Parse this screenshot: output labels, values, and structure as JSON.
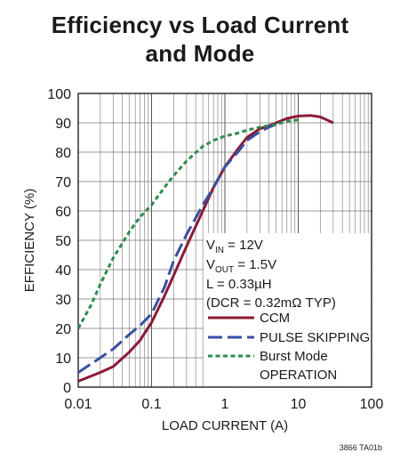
{
  "chart_data": {
    "type": "line",
    "title_line1": "Efficiency vs Load Current",
    "title_line2": "and Mode",
    "xlabel": "LOAD CURRENT (A)",
    "ylabel": "EFFICIENCY (%)",
    "x_scale": "log",
    "xlim": [
      0.01,
      100
    ],
    "ylim": [
      0,
      100
    ],
    "x_ticks": [
      0.01,
      0.1,
      1,
      10,
      100
    ],
    "x_tick_labels": [
      "0.01",
      "0.1",
      "1",
      "10",
      "100"
    ],
    "y_ticks": [
      0,
      10,
      20,
      30,
      40,
      50,
      60,
      70,
      80,
      90,
      100
    ],
    "y_tick_labels": [
      "0",
      "10",
      "20",
      "30",
      "40",
      "50",
      "60",
      "70",
      "80",
      "90",
      "100"
    ],
    "grid": true,
    "conditions": [
      {
        "sym": "V",
        "sub": "IN",
        "rest": " = 12V"
      },
      {
        "sym": "V",
        "sub": "OUT",
        "rest": " = 1.5V"
      },
      {
        "sym": "L = 0.33µH",
        "sub": "",
        "rest": ""
      },
      {
        "sym": "(DCR = 0.32mΩ TYP)",
        "sub": "",
        "rest": ""
      }
    ],
    "legend": [
      {
        "label": "CCM",
        "color": "#8b1a36",
        "style": "solid"
      },
      {
        "label": "PULSE SKIPPING",
        "color": "#3a4fa0",
        "style": "dash"
      },
      {
        "label": "Burst Mode",
        "label2": "OPERATION",
        "color": "#2e8b4e",
        "style": "dot"
      }
    ],
    "series": [
      {
        "name": "CCM",
        "color": "#8b1a36",
        "style": "solid",
        "x": [
          0.01,
          0.02,
          0.03,
          0.05,
          0.07,
          0.1,
          0.15,
          0.2,
          0.3,
          0.5,
          0.7,
          1,
          1.5,
          2,
          3,
          4,
          5,
          7,
          10,
          15,
          20,
          30
        ],
        "y": [
          2,
          5,
          7,
          12,
          16,
          22,
          31,
          38,
          48,
          60,
          68,
          75,
          81,
          85,
          88,
          89,
          90,
          91.5,
          92.3,
          92.5,
          92,
          90
        ]
      },
      {
        "name": "PULSE SKIPPING",
        "color": "#3a4fa0",
        "style": "dash",
        "x": [
          0.01,
          0.02,
          0.03,
          0.05,
          0.07,
          0.1,
          0.15,
          0.2,
          0.3,
          0.5,
          0.7,
          1,
          1.5,
          2,
          3,
          4,
          5
        ],
        "y": [
          5,
          10,
          13,
          18,
          21,
          25,
          34,
          43,
          52,
          62,
          68,
          75,
          80,
          84,
          87,
          88.5,
          89.5
        ]
      },
      {
        "name": "Burst Mode OPERATION",
        "color": "#2e8b4e",
        "style": "dot",
        "x": [
          0.01,
          0.015,
          0.02,
          0.03,
          0.05,
          0.07,
          0.1,
          0.15,
          0.2,
          0.3,
          0.5,
          0.7,
          1,
          1.5,
          2,
          3,
          5,
          7,
          10
        ],
        "y": [
          20,
          28,
          35,
          44,
          53,
          58,
          62,
          68,
          72,
          77,
          82,
          84,
          85.5,
          86.5,
          87.5,
          88.5,
          89.5,
          90.5,
          91
        ]
      }
    ]
  },
  "footer_code": "3866 TA01b"
}
